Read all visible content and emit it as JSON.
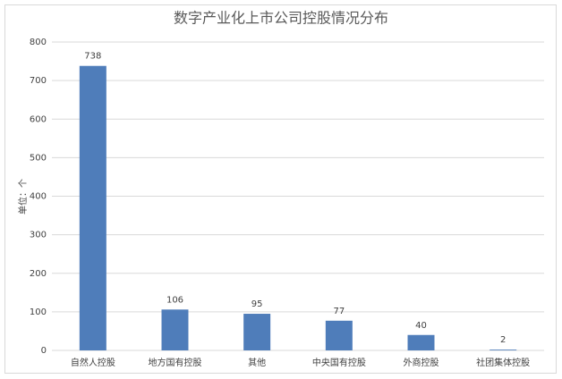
{
  "chart_data": {
    "type": "bar",
    "title": "数字产业化上市公司控股情况分布",
    "y_label": "单位：个",
    "categories": [
      "自然人控股",
      "地方国有控股",
      "其他",
      "中央国有控股",
      "外商控股",
      "社团集体控股"
    ],
    "values": [
      738,
      106,
      95,
      77,
      40,
      2
    ],
    "color": "#4f7dba",
    "ylim": [
      0,
      800
    ],
    "yticks": [
      0,
      100,
      200,
      300,
      400,
      500,
      600,
      700,
      800
    ],
    "grid": true
  }
}
